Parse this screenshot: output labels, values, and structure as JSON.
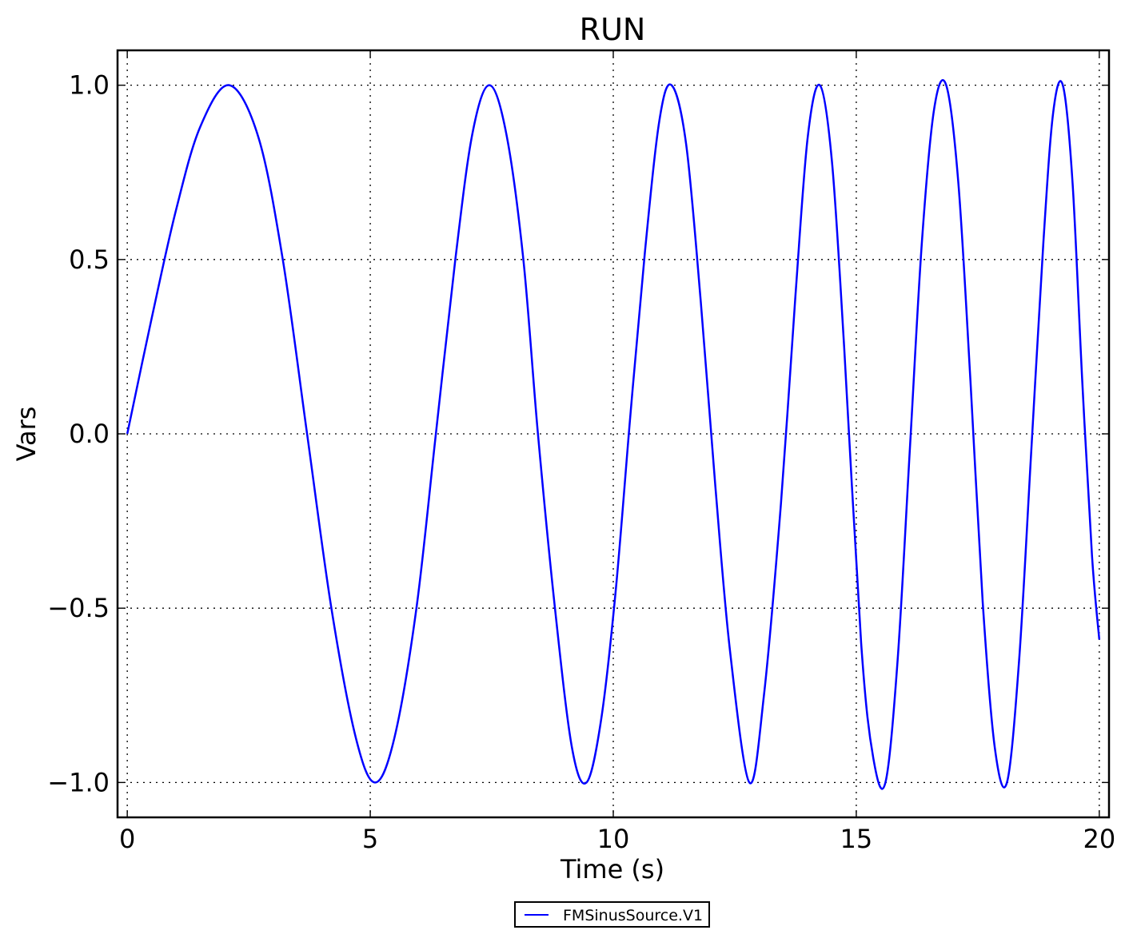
{
  "chart_data": {
    "type": "line",
    "title": "RUN",
    "xlabel": "Time (s)",
    "ylabel": "Vars",
    "xlim": [
      -0.2,
      20.2
    ],
    "ylim": [
      -1.1,
      1.1
    ],
    "x_ticks": [
      0,
      5,
      10,
      15,
      20
    ],
    "x_tick_labels": [
      "0",
      "5",
      "10",
      "15",
      "20"
    ],
    "y_ticks": [
      1.0,
      0.5,
      0.0,
      -0.5,
      -1.0
    ],
    "y_tick_labels": [
      "1.0",
      "0.5",
      "0.0",
      "−0.5",
      "−1.0"
    ],
    "grid": true,
    "legend_position": "bottom-center",
    "series": [
      {
        "name": "FMSinusSource.V1",
        "color": "#0000ff",
        "x": [
          0,
          0.5,
          1.0,
          1.5,
          2.1,
          2.7,
          3.2,
          3.7,
          4.2,
          4.7,
          5.1,
          5.5,
          5.95,
          6.35,
          6.75,
          7.1,
          7.45,
          7.8,
          8.15,
          8.45,
          8.8,
          9.15,
          9.45,
          9.75,
          10.05,
          10.35,
          10.65,
          10.95,
          11.2,
          11.5,
          11.8,
          12.1,
          12.4,
          12.8,
          13.1,
          13.45,
          13.75,
          14.0,
          14.25,
          14.5,
          14.75,
          15.1,
          15.35,
          15.6,
          15.85,
          16.1,
          16.35,
          16.6,
          16.85,
          17.1,
          17.35,
          17.6,
          17.85,
          18.1,
          18.35,
          18.6,
          18.85,
          19.05,
          19.25,
          19.45,
          19.65,
          19.85,
          20.0
        ],
        "y": [
          0.0,
          0.33,
          0.64,
          0.88,
          1.0,
          0.85,
          0.5,
          0.0,
          -0.5,
          -0.87,
          -1.0,
          -0.87,
          -0.5,
          0.0,
          0.5,
          0.86,
          1.0,
          0.86,
          0.5,
          0.0,
          -0.5,
          -0.9,
          -1.0,
          -0.82,
          -0.45,
          0.05,
          0.52,
          0.9,
          1.0,
          0.83,
          0.38,
          -0.15,
          -0.62,
          -1.0,
          -0.75,
          -0.2,
          0.4,
          0.85,
          1.0,
          0.78,
          0.25,
          -0.6,
          -0.93,
          -1.0,
          -0.65,
          -0.05,
          0.55,
          0.93,
          1.0,
          0.72,
          0.15,
          -0.48,
          -0.9,
          -1.0,
          -0.65,
          -0.05,
          0.55,
          0.92,
          1.0,
          0.72,
          0.15,
          -0.35,
          -0.59
        ]
      }
    ]
  }
}
